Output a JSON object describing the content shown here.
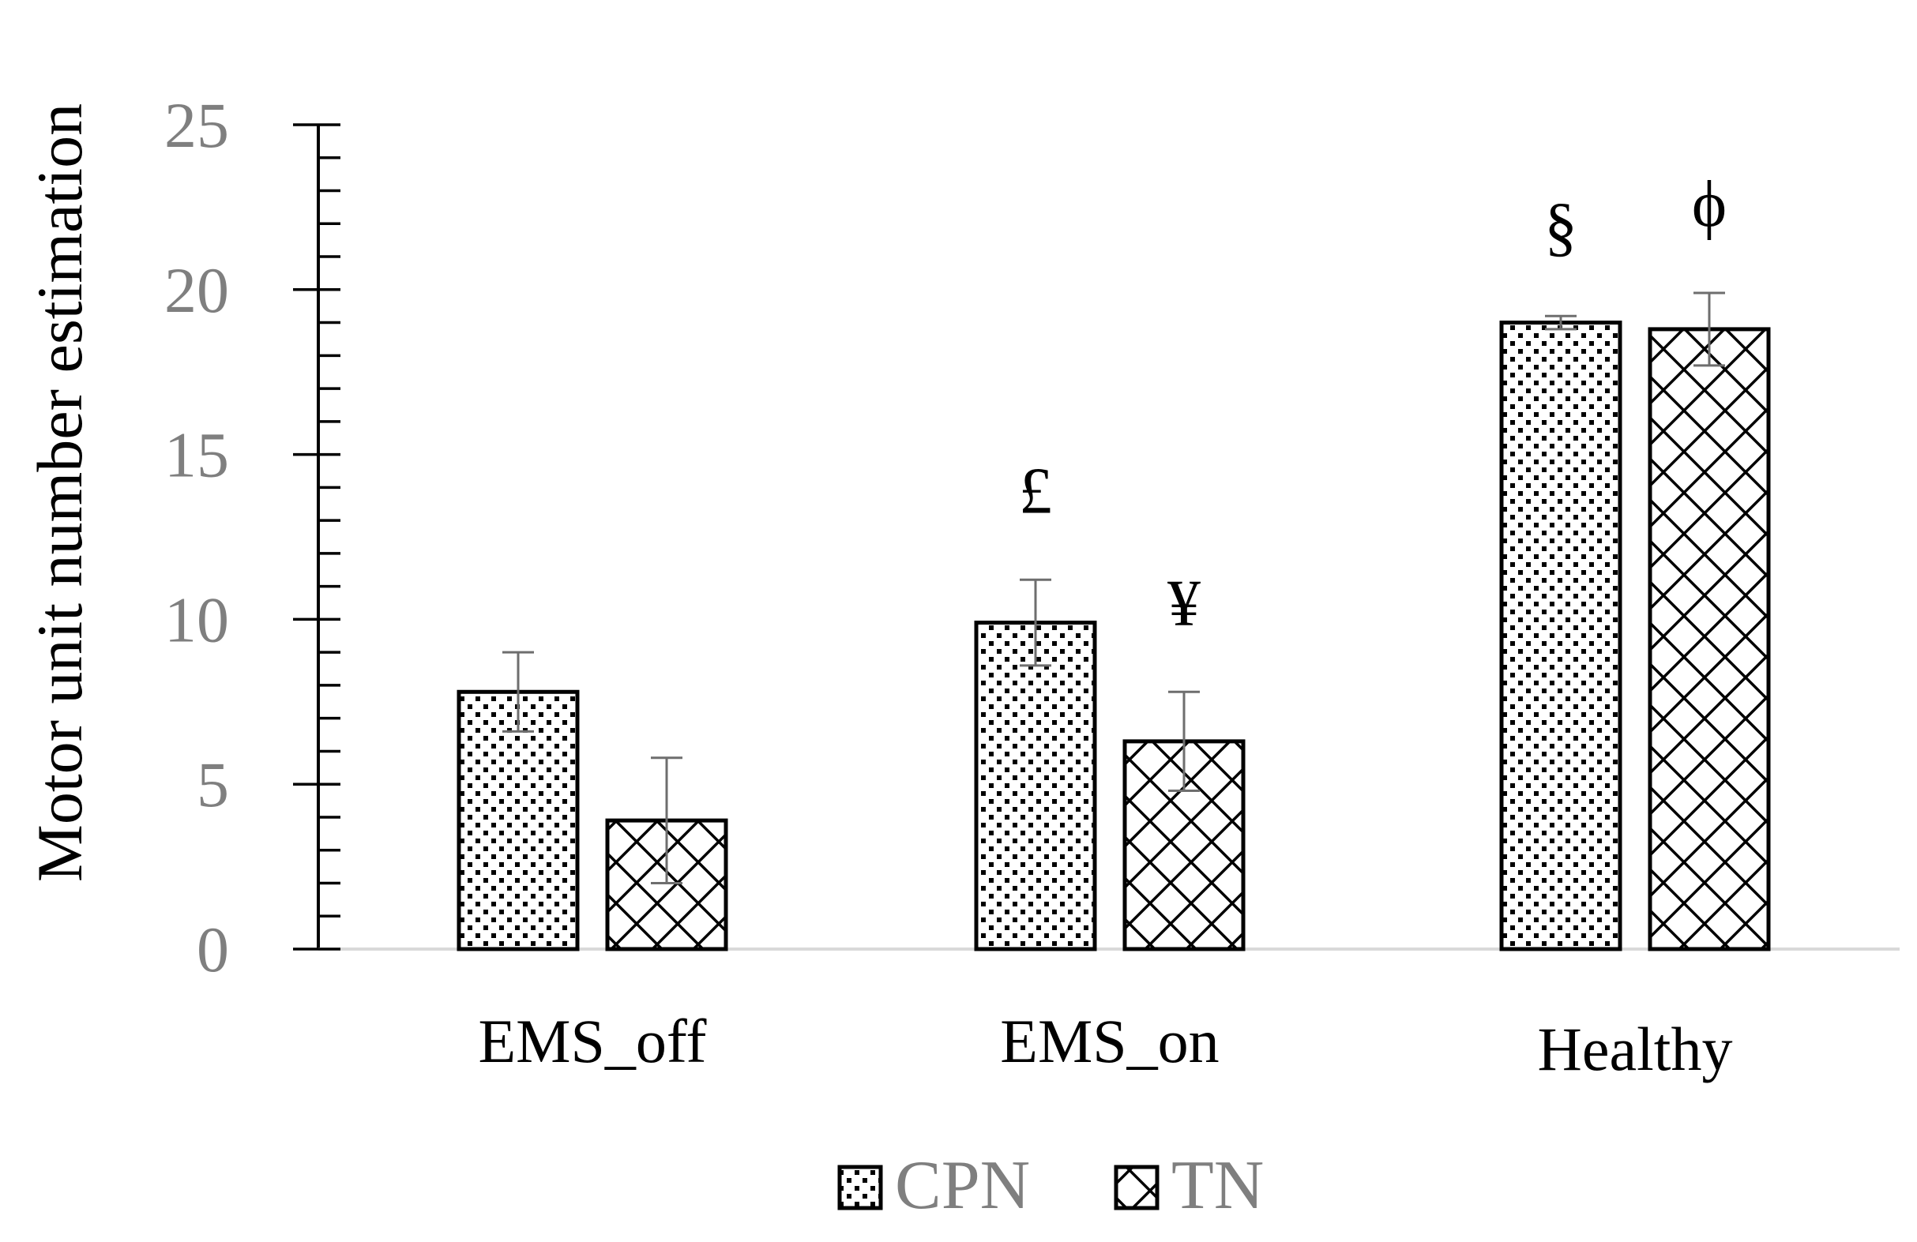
{
  "chart_data": {
    "type": "bar",
    "categories": [
      "EMS_off",
      "EMS_on",
      "Healthy"
    ],
    "series": [
      {
        "name": "CPN",
        "pattern": "dots",
        "values": [
          7.8,
          9.9,
          19.0
        ],
        "errors": [
          1.2,
          1.3,
          0.2
        ]
      },
      {
        "name": "TN",
        "pattern": "crosshatch",
        "values": [
          3.9,
          6.3,
          18.8
        ],
        "errors": [
          1.9,
          1.5,
          1.1
        ]
      }
    ],
    "annotations": [
      {
        "text": "£",
        "category": "EMS_on",
        "series": "CPN"
      },
      {
        "text": "¥",
        "category": "EMS_on",
        "series": "TN"
      },
      {
        "text": "§",
        "category": "Healthy",
        "series": "CPN"
      },
      {
        "text": "ϕ",
        "category": "Healthy",
        "series": "TN"
      }
    ],
    "title": "",
    "xlabel": "",
    "ylabel": "Motor unit number estimation",
    "ylim": [
      0,
      25
    ],
    "yticks": [
      "0",
      "5",
      "10",
      "15",
      "20",
      "25"
    ],
    "grid": false,
    "legend_position": "bottom",
    "colors": {
      "bar_stroke": "#000000",
      "tick_label": "#7f7f7f",
      "axis": "#000000",
      "baseline": "#d9d9d9"
    }
  }
}
